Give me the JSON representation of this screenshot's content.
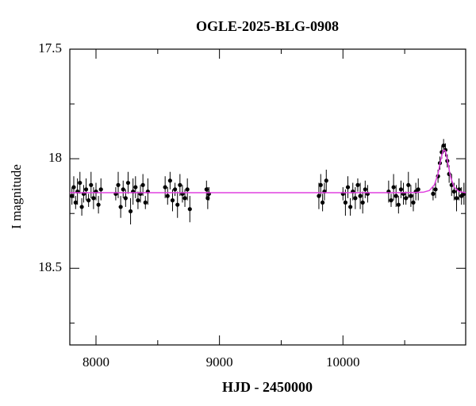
{
  "chart_data": {
    "type": "scatter",
    "title": "OGLE-2025-BLG-0908",
    "xlabel": "HJD - 2450000",
    "ylabel": "I magnitude",
    "xlim": [
      7788,
      10994
    ],
    "ylim": [
      17.5,
      18.85
    ],
    "y_inverted": true,
    "xticks": [
      8000,
      9000,
      10000
    ],
    "yticks": [
      17.5,
      18,
      18.5
    ],
    "xminor": [
      8500,
      9500,
      10500
    ],
    "yminor": [
      17.75,
      18.25,
      18.75
    ],
    "series": [
      {
        "kind": "points",
        "color": "#000000",
        "x": [
          7805,
          7820,
          7835,
          7850,
          7870,
          7885,
          7900,
          7920,
          7940,
          7960,
          7980,
          8000,
          8020,
          8040,
          8160,
          8180,
          8200,
          8220,
          8240,
          8260,
          8280,
          8300,
          8320,
          8340,
          8360,
          8380,
          8400,
          8420,
          8560,
          8580,
          8600,
          8620,
          8640,
          8660,
          8680,
          8700,
          8720,
          8740,
          8760,
          8895,
          8905,
          8915,
          9805,
          9820,
          9835,
          9850,
          9865,
          10000,
          10020,
          10040,
          10060,
          10080,
          10100,
          10120,
          10140,
          10160,
          10180,
          10200,
          10370,
          10390,
          10410,
          10430,
          10450,
          10470,
          10490,
          10510,
          10530,
          10550,
          10570,
          10590,
          10610,
          10730,
          10750,
          10770,
          10785,
          10800,
          10815,
          10830,
          10845,
          10860,
          10880,
          10900,
          10920,
          10940,
          10960,
          10980
        ],
        "values": [
          18.17,
          18.13,
          18.2,
          18.15,
          18.11,
          18.22,
          18.16,
          18.14,
          18.19,
          18.12,
          18.18,
          18.15,
          18.21,
          18.14,
          18.16,
          18.12,
          18.22,
          18.14,
          18.18,
          18.11,
          18.24,
          18.15,
          18.13,
          18.19,
          18.16,
          18.12,
          18.2,
          18.15,
          18.13,
          18.17,
          18.1,
          18.19,
          18.14,
          18.21,
          18.12,
          18.16,
          18.18,
          18.14,
          18.23,
          18.14,
          18.18,
          18.16,
          18.17,
          18.12,
          18.2,
          18.15,
          18.1,
          18.16,
          18.2,
          18.13,
          18.22,
          18.15,
          18.18,
          18.12,
          18.17,
          18.2,
          18.14,
          18.16,
          18.15,
          18.19,
          18.13,
          18.17,
          18.21,
          18.14,
          18.16,
          18.18,
          18.12,
          18.17,
          18.2,
          18.15,
          18.14,
          18.16,
          18.14,
          18.08,
          18.02,
          17.97,
          17.94,
          17.96,
          18.01,
          18.07,
          18.12,
          18.15,
          18.18,
          18.14,
          18.17,
          18.16
        ],
        "errors": [
          0.04,
          0.05,
          0.03,
          0.06,
          0.05,
          0.04,
          0.04,
          0.05,
          0.03,
          0.06,
          0.05,
          0.04,
          0.04,
          0.05,
          0.03,
          0.06,
          0.05,
          0.04,
          0.04,
          0.05,
          0.06,
          0.06,
          0.05,
          0.04,
          0.04,
          0.05,
          0.03,
          0.06,
          0.05,
          0.04,
          0.04,
          0.05,
          0.03,
          0.06,
          0.05,
          0.04,
          0.04,
          0.05,
          0.06,
          0.04,
          0.05,
          0.03,
          0.06,
          0.05,
          0.04,
          0.04,
          0.05,
          0.03,
          0.06,
          0.05,
          0.04,
          0.04,
          0.05,
          0.03,
          0.06,
          0.05,
          0.04,
          0.04,
          0.05,
          0.03,
          0.06,
          0.05,
          0.04,
          0.04,
          0.05,
          0.03,
          0.06,
          0.05,
          0.04,
          0.04,
          0.05,
          0.03,
          0.04,
          0.03,
          0.03,
          0.03,
          0.03,
          0.03,
          0.03,
          0.04,
          0.05,
          0.04,
          0.06,
          0.05,
          0.04,
          0.05
        ]
      },
      {
        "kind": "line",
        "color": "#e040e0",
        "x": [
          7788,
          10500,
          10650,
          10700,
          10740,
          10770,
          10790,
          10810,
          10820,
          10830,
          10850,
          10870,
          10900,
          10940,
          10994
        ],
        "values": [
          18.155,
          18.155,
          18.153,
          18.145,
          18.12,
          18.07,
          18.01,
          17.965,
          17.96,
          17.965,
          18.02,
          18.08,
          18.13,
          18.15,
          18.155
        ]
      }
    ]
  }
}
